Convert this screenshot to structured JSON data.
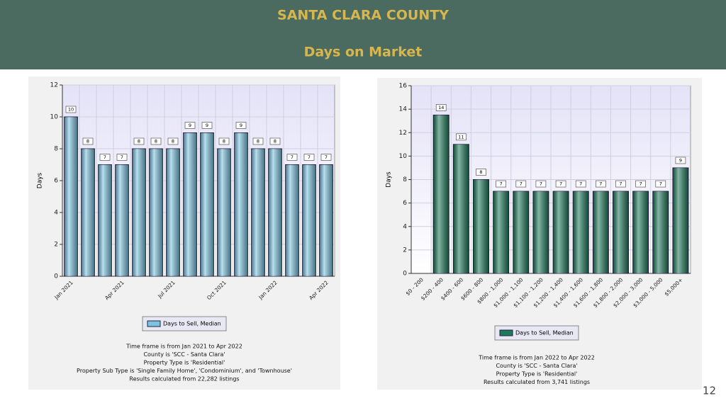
{
  "header": {
    "title": "SANTA CLARA COUNTY",
    "subtitle": "Days on Market"
  },
  "page_number": "12",
  "chart_data": [
    {
      "type": "bar",
      "y_label": "Days",
      "categories": [
        "Jan 2021",
        null,
        null,
        "Apr 2021",
        null,
        null,
        "Jul 2021",
        null,
        null,
        "Oct 2021",
        null,
        null,
        "Jan 2022",
        null,
        null,
        "Apr 2022"
      ],
      "series": [
        {
          "name": "Days to Sell, Median",
          "color": "#7cc4e0",
          "values": [
            10,
            8,
            7,
            7,
            8,
            8,
            8,
            9,
            9,
            8,
            9,
            8,
            8,
            7,
            7,
            7
          ]
        }
      ],
      "ylim": [
        0,
        12
      ],
      "yticks": [
        0,
        2,
        4,
        6,
        8,
        10,
        12
      ],
      "grid": true,
      "notes": [
        "Time frame is from Jan 2021 to Apr 2022",
        "County is 'SCC - Santa Clara'",
        "Property Type is 'Residential'",
        "Property Sub Type is 'Single Family Home', 'Condominium', and 'Townhouse'",
        "Results calculated from 22,282 listings"
      ]
    },
    {
      "type": "bar",
      "y_label": "Days",
      "categories": [
        "$0 - 200",
        "$200 - 400",
        "$400 - 600",
        "$600 - 800",
        "$800 - 1,000",
        "$1,000 - 1,100",
        "$1,100 - 1,200",
        "$1,200 - 1,400",
        "$1,400 - 1,600",
        "$1,600 - 1,800",
        "$1,800 - 2,000",
        "$2,000 - 3,000",
        "$3,000 - 5,000",
        "$5,000+"
      ],
      "series": [
        {
          "name": "Days to Sell, Median",
          "color": "#1f7a5a",
          "values": [
            null,
            13.5,
            11,
            8,
            7,
            7,
            7,
            7,
            7,
            7,
            7,
            7,
            7,
            9
          ],
          "value_labels": [
            null,
            "14",
            "11",
            "8",
            "7",
            "7",
            "7",
            "7",
            "7",
            "7",
            "7",
            "7",
            "7",
            "9"
          ]
        }
      ],
      "ylim": [
        0,
        16
      ],
      "yticks": [
        0,
        2,
        4,
        6,
        8,
        10,
        12,
        14,
        16
      ],
      "grid": true,
      "notes": [
        "Time frame is from Jan 2022 to Apr 2022",
        "County is 'SCC - Santa Clara'",
        "Property Type is 'Residential'",
        "Results calculated from 3,741 listings"
      ]
    }
  ]
}
